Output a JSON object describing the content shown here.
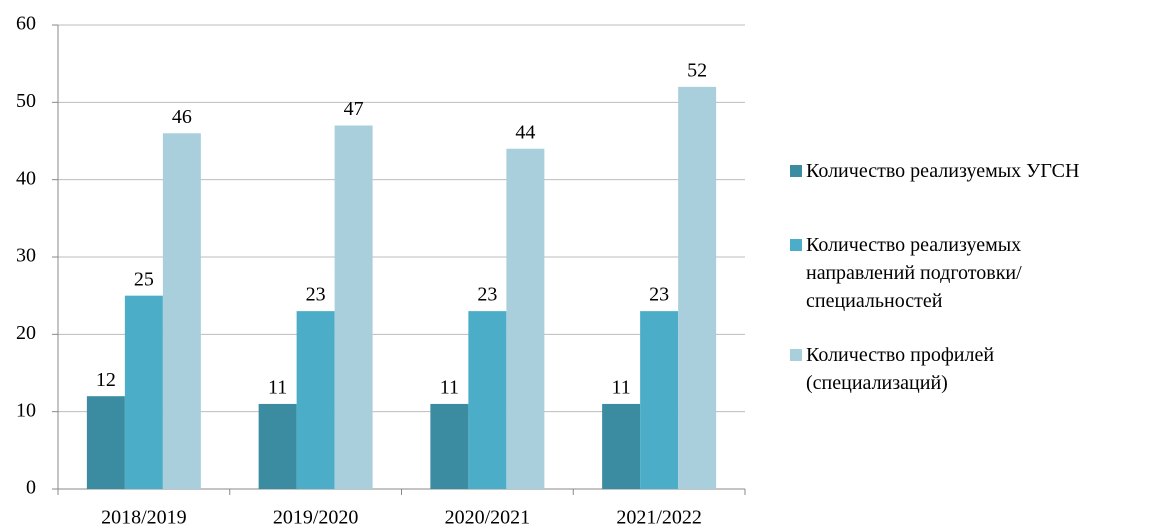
{
  "chart_data": {
    "type": "bar",
    "categories": [
      "2018/2019",
      "2019/2020",
      "2020/2021",
      "2021/2022"
    ],
    "series": [
      {
        "name": "Количество реализуемых УГСН",
        "color": "#3b8ca1",
        "values": [
          12,
          11,
          11,
          11
        ]
      },
      {
        "name": "Количество реализуемых направлений подготовки/специальностей",
        "color": "#4badc7",
        "values": [
          25,
          23,
          23,
          23
        ]
      },
      {
        "name": "Количество профилей (специализаций)",
        "color": "#a9cfdd",
        "values": [
          46,
          47,
          44,
          52
        ]
      }
    ],
    "ylim": [
      0,
      60
    ],
    "yticks": [
      0,
      10,
      20,
      30,
      40,
      50,
      60
    ],
    "grid": true,
    "legend": "right"
  }
}
